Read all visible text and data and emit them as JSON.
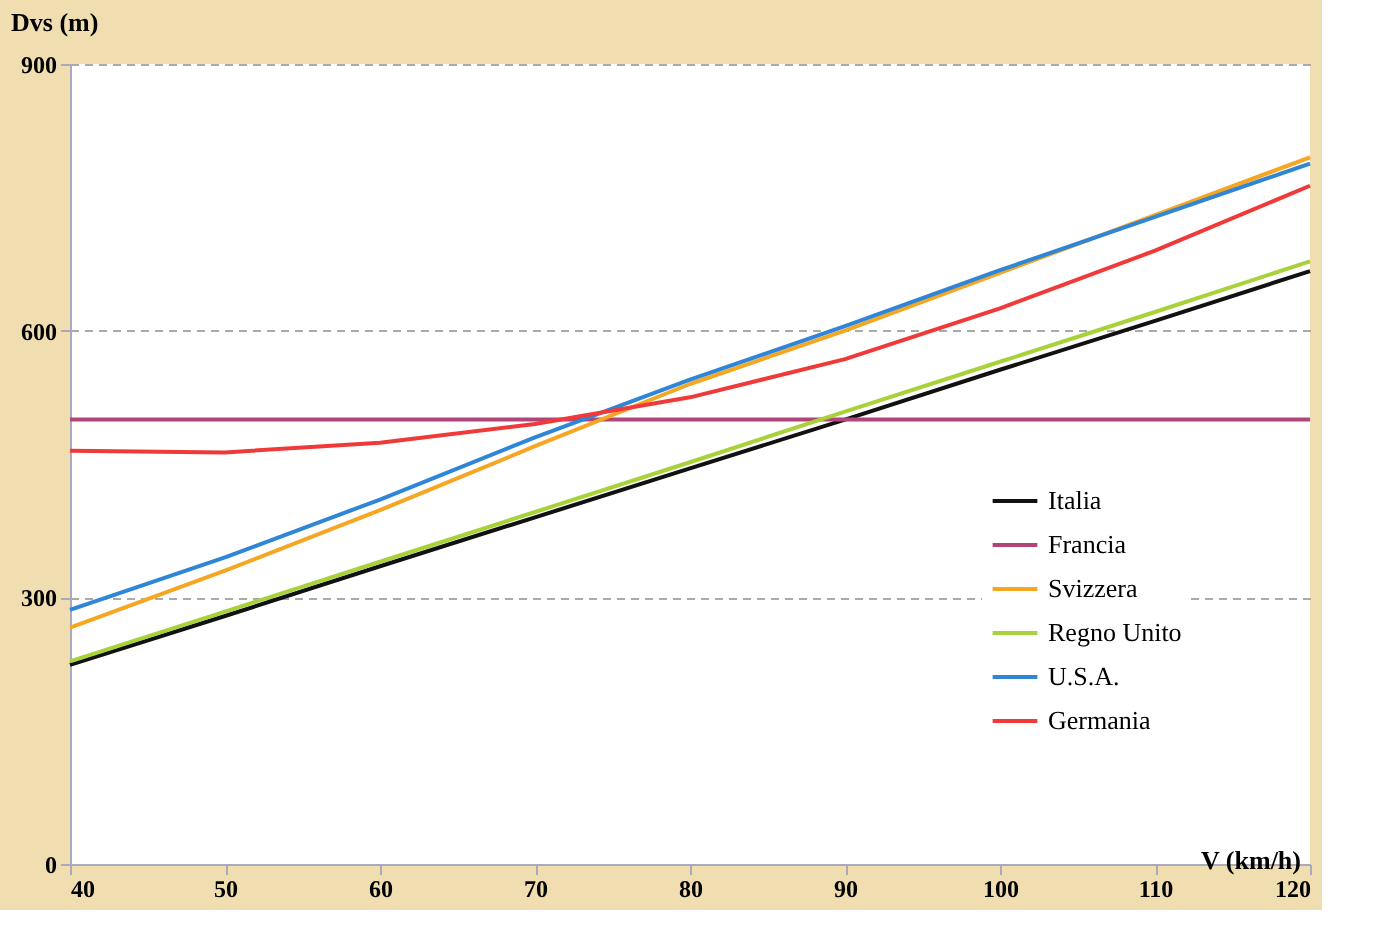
{
  "chart_data": {
    "type": "line",
    "xlabel": "V (km/h)",
    "ylabel": "Dvs (m)",
    "x": [
      40,
      50,
      60,
      70,
      80,
      90,
      100,
      110,
      120
    ],
    "series": [
      {
        "name": "Italia",
        "color": "#111111",
        "values": [
          224,
          279,
          335,
          390,
          445,
          500,
          556,
          611,
          667
        ]
      },
      {
        "name": "Francia",
        "color": "#b0457a",
        "values": [
          500,
          500,
          500,
          500,
          500,
          500,
          500,
          500,
          500
        ]
      },
      {
        "name": "Svizzera",
        "color": "#f5a623",
        "values": [
          266,
          330,
          398,
          470,
          540,
          600,
          665,
          730,
          795
        ]
      },
      {
        "name": "Regno Unito",
        "color": "#a8d13a",
        "values": [
          228,
          284,
          340,
          396,
          452,
          509,
          565,
          621,
          678
        ]
      },
      {
        "name": "U.S.A.",
        "color": "#2f86d6",
        "values": [
          286,
          345,
          410,
          480,
          545,
          605,
          668,
          728,
          788
        ]
      },
      {
        "name": "Germania",
        "color": "#f03a3a",
        "values": [
          465,
          463,
          474,
          495,
          525,
          568,
          625,
          690,
          763
        ]
      }
    ],
    "xlim": [
      40,
      120
    ],
    "xticks": [
      40,
      50,
      60,
      70,
      80,
      90,
      100,
      110,
      120
    ],
    "ylim": [
      0,
      900
    ],
    "yticks": [
      0,
      300,
      600,
      900
    ],
    "grid": "y",
    "legend": "bottom right",
    "marker": "none",
    "line_style": "solid"
  }
}
